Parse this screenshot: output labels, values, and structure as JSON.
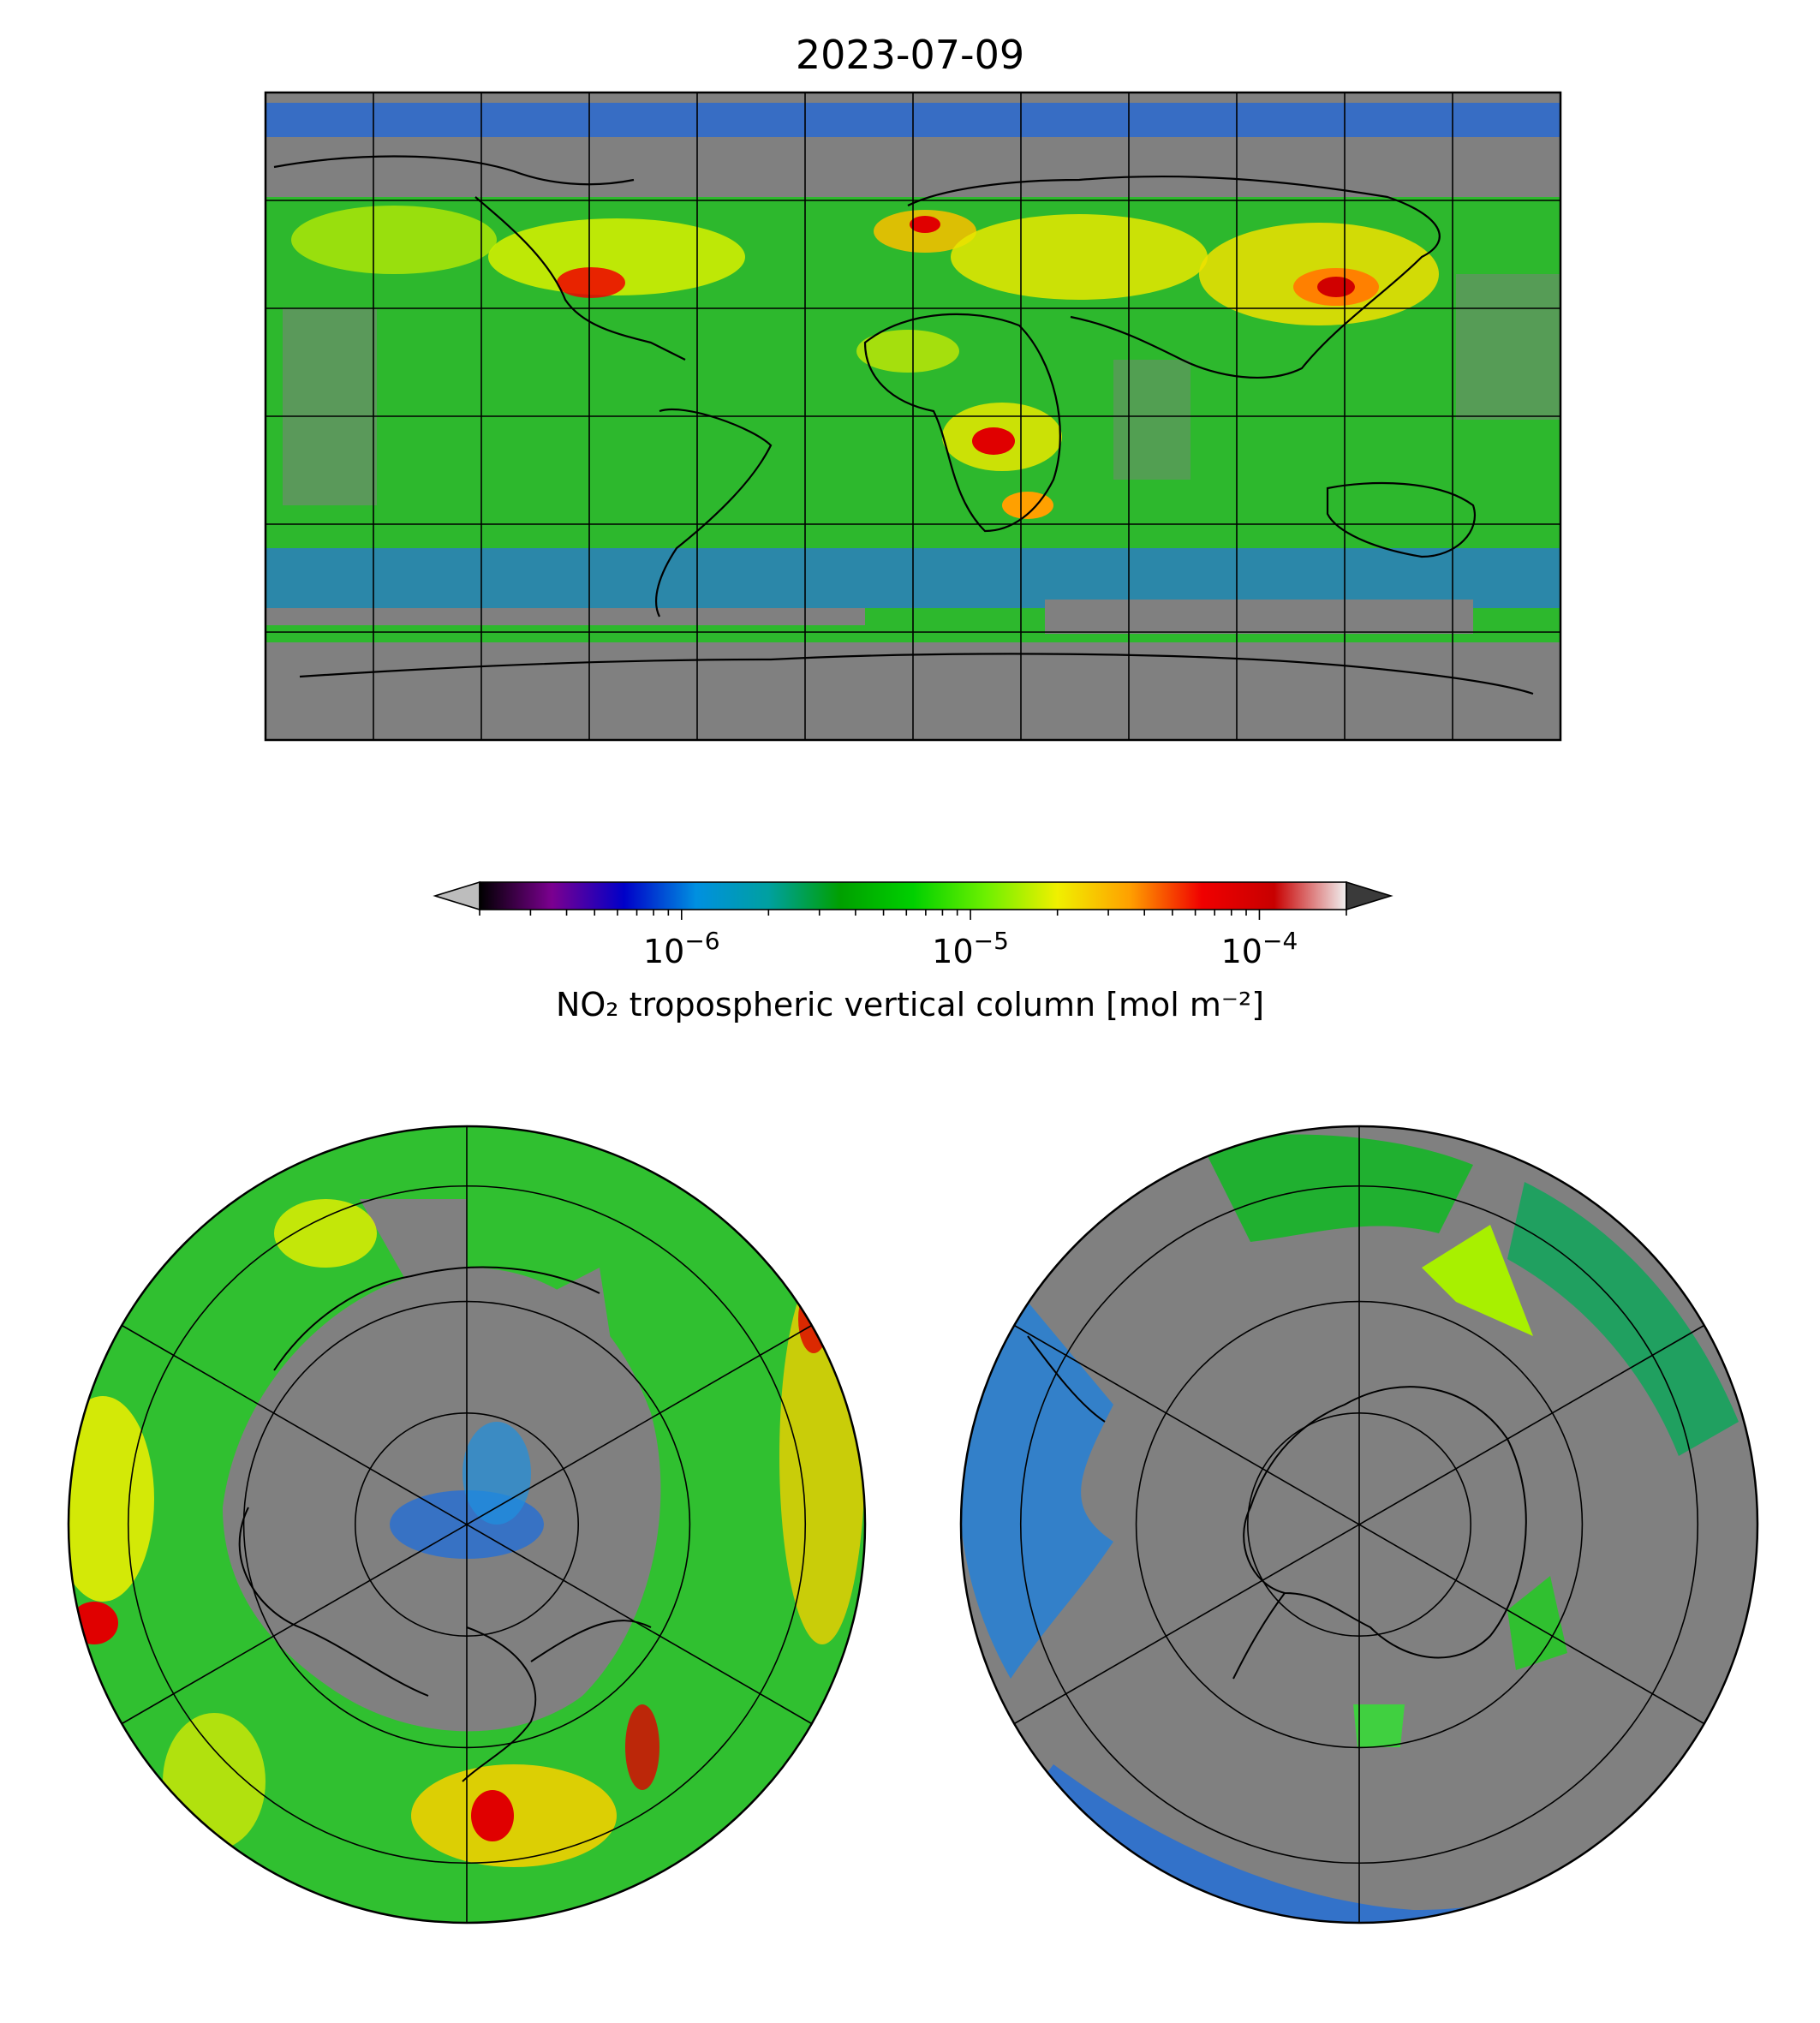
{
  "title": "2023-07-09",
  "colorbar": {
    "label": "NO₂ tropospheric vertical column [mol m⁻²]",
    "scale": "log",
    "range": [
      2e-07,
      0.0002
    ],
    "extend": "both",
    "ticks": [
      {
        "value": 1e-06,
        "base": "10",
        "exp": "−6"
      },
      {
        "value": 1e-05,
        "base": "10",
        "exp": "−5"
      },
      {
        "value": 0.0001,
        "base": "10",
        "exp": "−4"
      }
    ],
    "colormap": [
      "#000000",
      "#7b0090",
      "#0000c8",
      "#0090e0",
      "#00a0a0",
      "#00a000",
      "#00d000",
      "#6cf000",
      "#f0f000",
      "#ffa000",
      "#f00000",
      "#c80000",
      "#f0f0f0"
    ],
    "under_color": "#bdbdbd",
    "over_color": "#3a3a3a"
  },
  "maps": {
    "global": {
      "projection": "plate-carree",
      "no_data_color": "#808080",
      "graticule_step_deg": 30
    },
    "north": {
      "projection": "north-polar-stereographic",
      "no_data_color": "#808080"
    },
    "south": {
      "projection": "south-polar-stereographic",
      "no_data_color": "#808080"
    }
  }
}
